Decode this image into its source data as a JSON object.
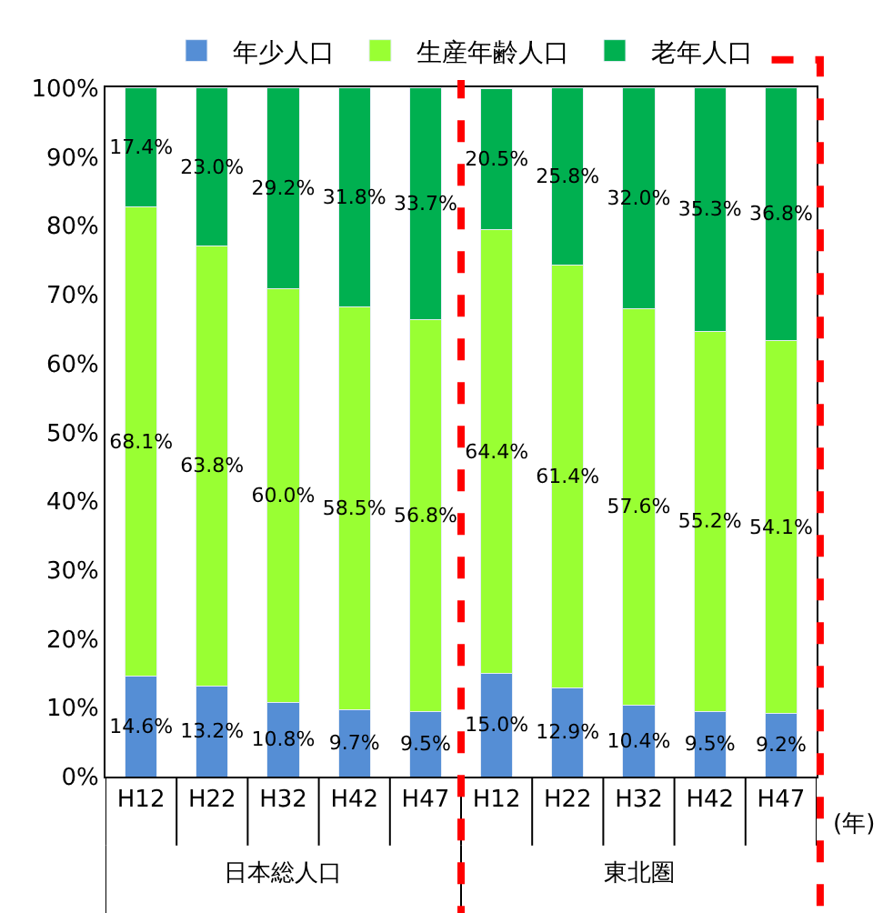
{
  "chart_data": {
    "type": "bar",
    "stacked": true,
    "categories": [
      "H12",
      "H22",
      "H32",
      "H42",
      "H47",
      "H12",
      "H22",
      "H32",
      "H42",
      "H47"
    ],
    "series": [
      {
        "name": "年少人口",
        "color": "#558ed5",
        "values": [
          14.6,
          13.2,
          10.8,
          9.7,
          9.5,
          15.0,
          12.9,
          10.4,
          9.5,
          9.2
        ],
        "value_labels": [
          "14.6%",
          "13.2%",
          "10.8%",
          "9.7%",
          "9.5%",
          "15.0%",
          "12.9%",
          "10.4%",
          "9.5%",
          "9.2%"
        ]
      },
      {
        "name": "生産年齢人口",
        "color": "#99ff33",
        "values": [
          68.1,
          63.8,
          60.0,
          58.5,
          56.8,
          64.4,
          61.4,
          57.6,
          55.2,
          54.1
        ],
        "value_labels": [
          "68.1%",
          "63.8%",
          "60.0%",
          "58.5%",
          "56.8%",
          "64.4%",
          "61.4%",
          "57.6%",
          "55.2%",
          "54.1%"
        ]
      },
      {
        "name": "老年人口",
        "color": "#00b050",
        "values": [
          17.4,
          23.0,
          29.2,
          31.8,
          33.7,
          20.5,
          25.8,
          32.0,
          35.3,
          36.8
        ],
        "value_labels": [
          "17.4%",
          "23.0%",
          "29.2%",
          "31.8%",
          "33.7%",
          "20.5%",
          "25.8%",
          "32.0%",
          "35.3%",
          "36.8%"
        ]
      }
    ],
    "ylim": [
      0,
      100.1
    ],
    "yticks": [
      {
        "value": 0,
        "label": "0%"
      },
      {
        "value": 10,
        "label": "10%"
      },
      {
        "value": 20,
        "label": "20%"
      },
      {
        "value": 30,
        "label": "30%"
      },
      {
        "value": 40,
        "label": "40%"
      },
      {
        "value": 50,
        "label": "50%"
      },
      {
        "value": 60,
        "label": "60%"
      },
      {
        "value": 70,
        "label": "70%"
      },
      {
        "value": 80,
        "label": "80%"
      },
      {
        "value": 90,
        "label": "90%"
      },
      {
        "value": 100,
        "label": "100%"
      }
    ],
    "annotations": [
      "日本総人口",
      "東北圏",
      "(年)"
    ],
    "grid": false,
    "legend": "top"
  }
}
